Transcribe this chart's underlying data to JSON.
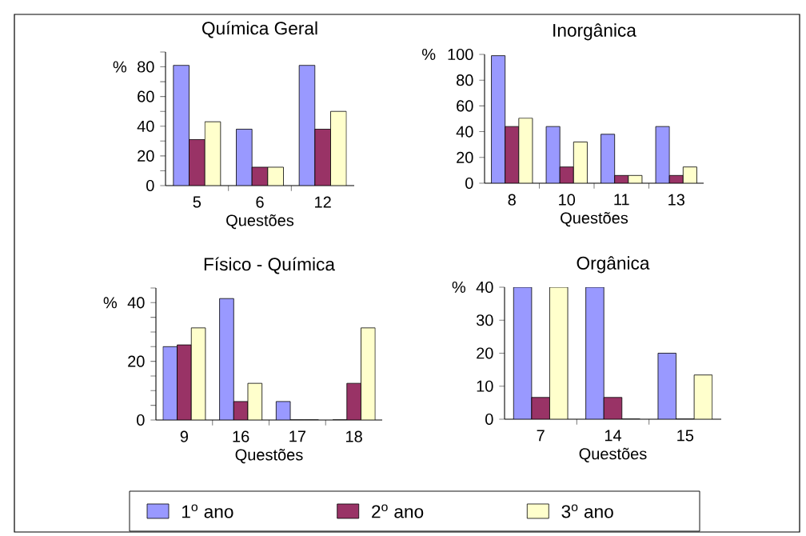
{
  "chart_data": [
    {
      "type": "bar",
      "title": "Química Geral",
      "xlabel": "Questões",
      "ylabel": "%",
      "categories": [
        "5",
        "6",
        "12"
      ],
      "series": [
        {
          "color": "#9999ff",
          "values": [
            81,
            38,
            81
          ]
        },
        {
          "color": "#993366",
          "values": [
            31,
            12.4,
            38
          ]
        },
        {
          "color": "#ffffcc",
          "values": [
            43,
            12.4,
            50
          ]
        }
      ],
      "ylim": [
        0,
        90
      ],
      "yticks": [
        0,
        {
          "value": 10,
          "label": null
        },
        20,
        {
          "value": 30,
          "label": null
        },
        40,
        {
          "value": 50,
          "label": null
        },
        60,
        {
          "value": 70,
          "label": null
        },
        80,
        {
          "value": 90,
          "label": null
        }
      ]
    },
    {
      "type": "bar",
      "title": "Inorgânica",
      "xlabel": "Questões",
      "ylabel": "%",
      "categories": [
        "8",
        "10",
        "11",
        "13"
      ],
      "series": [
        {
          "color": "#9999ff",
          "values": [
            99,
            44,
            38,
            44
          ]
        },
        {
          "color": "#993366",
          "values": [
            44,
            12.6,
            6,
            6
          ]
        },
        {
          "color": "#ffffcc",
          "values": [
            50.5,
            32,
            6,
            12.6
          ]
        }
      ],
      "ylim": [
        0,
        100
      ],
      "yticks": [
        0,
        20,
        40,
        60,
        80,
        100
      ]
    },
    {
      "type": "bar",
      "title": "Físico - Química",
      "xlabel": "Questões",
      "ylabel": "%",
      "categories": [
        "9",
        "16",
        "17",
        "18"
      ],
      "series": [
        {
          "color": "#9999ff",
          "values": [
            25,
            41.4,
            6.3,
            0
          ]
        },
        {
          "color": "#993366",
          "values": [
            25.6,
            6.3,
            0,
            12.5
          ]
        },
        {
          "color": "#ffffcc",
          "values": [
            31.4,
            12.5,
            0,
            31.4
          ]
        }
      ],
      "ylim": [
        0,
        45
      ],
      "yticks": [
        0,
        {
          "value": 5,
          "label": null
        },
        {
          "value": 10,
          "label": null
        },
        {
          "value": 15,
          "label": null
        },
        20,
        {
          "value": 25,
          "label": null
        },
        {
          "value": 30,
          "label": null
        },
        {
          "value": 35,
          "label": null
        },
        40,
        {
          "value": 45,
          "label": null
        }
      ]
    },
    {
      "type": "bar",
      "title": "Orgânica",
      "xlabel": "Questões",
      "ylabel": "%",
      "categories": [
        "7",
        "14",
        "15"
      ],
      "series": [
        {
          "name": "1$^{o}$ ano",
          "color": "#9999ff",
          "values": [
            40,
            40,
            20
          ]
        },
        {
          "name": "2$^{o}$ ano",
          "color": "#993366",
          "values": [
            6.6,
            6.6,
            0
          ]
        },
        {
          "name": "3$^{o}$ ano",
          "color": "#ffffcc",
          "values": [
            40,
            0,
            13.4
          ]
        }
      ],
      "ylim": [
        0,
        40
      ],
      "yticks": [
        0,
        10,
        20,
        30,
        40
      ],
      "legend": "bottom"
    }
  ]
}
